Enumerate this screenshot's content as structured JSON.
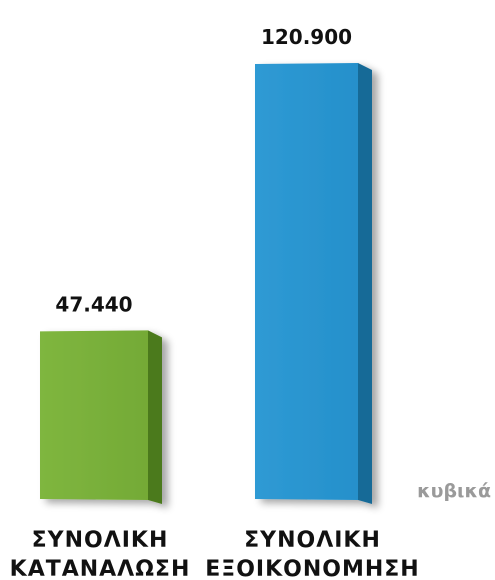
{
  "chart_data": {
    "type": "bar",
    "title": "",
    "xlabel": "",
    "ylabel": "",
    "unit": "κυβικά",
    "categories": [
      [
        "ΣΥΝΟΛΙΚΗ",
        "ΚΑΤΑΝΑΛΩΣΗ"
      ],
      [
        "ΣΥΝΟΛΙΚΗ",
        "ΕΞΟΙΚΟΝΟΜΗΣΗ"
      ]
    ],
    "values": [
      47440,
      120900
    ],
    "value_labels": [
      "47.440",
      "120.900"
    ],
    "colors": [
      "#7bb13c",
      "#2b95cf"
    ],
    "grid": false,
    "legend": "none"
  }
}
